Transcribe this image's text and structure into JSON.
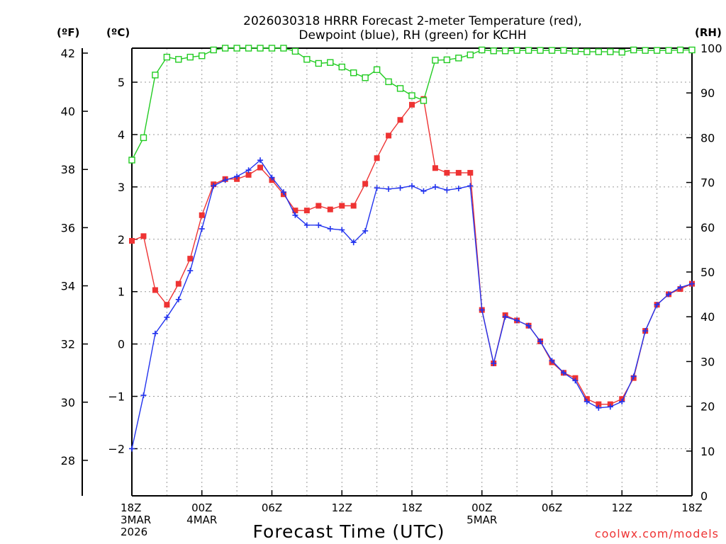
{
  "chart_data": {
    "type": "line",
    "title_line1": "2026030318 HRRR Forecast 2-meter Temperature (red),",
    "title_line2": "Dewpoint (blue), RH (green) for KCHH",
    "xlabel": "Forecast Time (UTC)",
    "unit_left_f": "(ºF)",
    "unit_left_c": "(ºC)",
    "unit_right": "(RH)",
    "credit": "coolwx.com/models",
    "x_range_hours": [
      0,
      48
    ],
    "c_ylim": [
      -2.9,
      5.65
    ],
    "rh_ylim": [
      0,
      100
    ],
    "f_ticks": [
      28,
      30,
      32,
      34,
      36,
      38,
      40,
      42
    ],
    "c_ticks": [
      -2,
      -1,
      0,
      1,
      2,
      3,
      4,
      5
    ],
    "rh_ticks": [
      0,
      10,
      20,
      30,
      40,
      50,
      60,
      70,
      80,
      90,
      100
    ],
    "x_ticks": [
      {
        "hour": 0,
        "lines": [
          "18Z",
          "3MAR",
          "2026"
        ]
      },
      {
        "hour": 6,
        "lines": [
          "00Z",
          "4MAR"
        ]
      },
      {
        "hour": 12,
        "lines": [
          "06Z"
        ]
      },
      {
        "hour": 18,
        "lines": [
          "12Z"
        ]
      },
      {
        "hour": 24,
        "lines": [
          "18Z"
        ]
      },
      {
        "hour": 30,
        "lines": [
          "00Z",
          "5MAR"
        ]
      },
      {
        "hour": 36,
        "lines": [
          "06Z"
        ]
      },
      {
        "hour": 42,
        "lines": [
          "12Z"
        ]
      },
      {
        "hour": 48,
        "lines": [
          "18Z"
        ]
      }
    ],
    "grid": true,
    "series": [
      {
        "id": "temperature",
        "color": "#ee3333",
        "marker": "filled-square",
        "values": [
          1.97,
          2.06,
          1.03,
          0.75,
          1.15,
          1.63,
          2.46,
          3.05,
          3.15,
          3.15,
          3.23,
          3.37,
          3.13,
          2.86,
          2.55,
          2.55,
          2.64,
          2.57,
          2.64,
          2.64,
          3.06,
          3.55,
          3.98,
          4.28,
          4.57,
          4.68,
          3.36,
          3.27,
          3.27,
          3.27,
          0.65,
          -0.37,
          0.55,
          0.45,
          0.35,
          0.05,
          -0.35,
          -0.55,
          -0.65,
          -1.05,
          -1.15,
          -1.15,
          -1.05,
          -0.65,
          0.25,
          0.75,
          0.95,
          1.05,
          1.15
        ]
      },
      {
        "id": "dewpoint",
        "color": "#2233ee",
        "marker": "plus",
        "values": [
          -2.0,
          -0.98,
          0.2,
          0.51,
          0.85,
          1.4,
          2.2,
          3.02,
          3.13,
          3.2,
          3.32,
          3.51,
          3.18,
          2.9,
          2.46,
          2.27,
          2.27,
          2.2,
          2.18,
          1.94,
          2.16,
          2.98,
          2.96,
          2.98,
          3.02,
          2.92,
          3.0,
          2.94,
          2.97,
          3.02,
          0.65,
          -0.37,
          0.52,
          0.45,
          0.35,
          0.05,
          -0.32,
          -0.55,
          -0.7,
          -1.1,
          -1.22,
          -1.2,
          -1.1,
          -0.62,
          0.25,
          0.75,
          0.95,
          1.08,
          1.15
        ]
      },
      {
        "id": "rh",
        "color": "#22cc22",
        "marker": "open-square",
        "axis": "right",
        "values": [
          75,
          80,
          94,
          98,
          97.5,
          98,
          98.3,
          99.6,
          100,
          100,
          100,
          100,
          100,
          100,
          99.3,
          97.5,
          96.6,
          96.8,
          95.8,
          94.5,
          93.4,
          95.2,
          92.5,
          91,
          89.4,
          88.3,
          97.3,
          97.4,
          97.8,
          98.5,
          99.6,
          99.4,
          99.4,
          99.5,
          99.5,
          99.5,
          99.5,
          99.5,
          99.3,
          99.2,
          99.2,
          99.2,
          99.1,
          99.6,
          99.5,
          99.5,
          99.5,
          99.6,
          99.6
        ]
      }
    ]
  }
}
